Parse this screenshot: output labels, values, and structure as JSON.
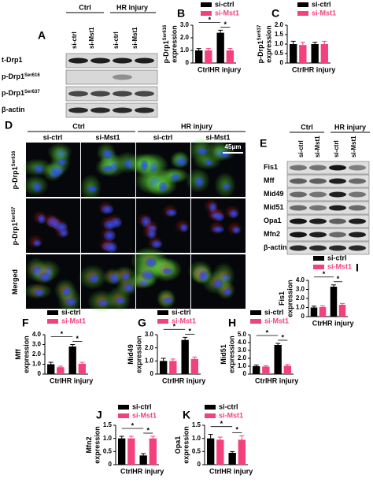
{
  "blot_a": {
    "label": "A",
    "groups": [
      "Ctrl",
      "HR injury"
    ],
    "lanes": [
      "si-ctrl",
      "si-Mst1",
      "si-ctrl",
      "si-Mst1"
    ],
    "rows": [
      {
        "name": "t-Drp1"
      },
      {
        "name": "p-Drp1",
        "sup": "Ser616"
      },
      {
        "name": "p-Drp1",
        "sup": "Ser637"
      },
      {
        "name": "β-actin"
      }
    ]
  },
  "images_d": {
    "label": "D",
    "groups": [
      "Ctrl",
      "HR injury"
    ],
    "lanes": [
      "si-ctrl",
      "si-Mst1",
      "si-ctrl",
      "si-Mst1"
    ],
    "rows": [
      {
        "name": "p-Drp1",
        "sup": "Ser616"
      },
      {
        "name": "p-Drp1",
        "sup": "Ser637"
      },
      {
        "name": "Merged"
      }
    ],
    "scale_bar": "45μm"
  },
  "blot_e": {
    "label": "E",
    "groups": [
      "Ctrl",
      "HR injury"
    ],
    "lanes": [
      "si-ctrl",
      "si-Mst1",
      "si-ctrl",
      "si-Mst1"
    ],
    "rows": [
      {
        "name": "Fis1"
      },
      {
        "name": "Mff"
      },
      {
        "name": "Mid49"
      },
      {
        "name": "Mid51"
      },
      {
        "name": "Opa1"
      },
      {
        "name": "Mfn2"
      },
      {
        "name": "β-actin"
      }
    ]
  },
  "chart_data": [
    {
      "type": "bar",
      "panel": "B",
      "ylabel": "p-Drp1",
      "ylabel_sup": "Ser616",
      "ylabel_line2": "expression",
      "categories": [
        "Ctrl",
        "HR injury"
      ],
      "series": [
        {
          "name": "si-ctrl",
          "color": "#000000",
          "values": [
            1.0,
            2.4
          ],
          "errors": [
            0.15,
            0.2
          ]
        },
        {
          "name": "si-Mst1",
          "color": "#f2417e",
          "values": [
            1.0,
            1.0
          ],
          "errors": [
            0.15,
            0.15
          ]
        }
      ],
      "ylim": [
        0,
        3
      ],
      "yticks": [
        0,
        {
          "value": 1,
          "label": "1.0"
        },
        {
          "value": 2,
          "label": "2.0"
        },
        {
          "value": 3,
          "label": "3.0"
        }
      ],
      "annotations": [
        "*",
        "*"
      ]
    },
    {
      "type": "bar",
      "panel": "C",
      "ylabel": "p-Drp1",
      "ylabel_sup": "Ser637",
      "ylabel_line2": "expression",
      "categories": [
        "Ctrl",
        "HR injury"
      ],
      "series": [
        {
          "name": "si-ctrl",
          "color": "#000000",
          "values": [
            1.0,
            1.0
          ],
          "errors": [
            0.15,
            0.1
          ]
        },
        {
          "name": "si-Mst1",
          "color": "#f2417e",
          "values": [
            0.95,
            1.0
          ],
          "errors": [
            0.15,
            0.15
          ]
        }
      ],
      "ylim": [
        0,
        2
      ],
      "yticks": [
        0,
        0.5,
        {
          "value": 1,
          "label": "1.0"
        },
        1.5,
        {
          "value": 2,
          "label": "2.0"
        }
      ],
      "annotations": []
    },
    {
      "type": "bar",
      "panel": "F",
      "ylabel": "Mff",
      "ylabel_line2": "expression",
      "categories": [
        "Ctrl",
        "HR injury"
      ],
      "series": [
        {
          "name": "si-ctrl",
          "color": "#000000",
          "values": [
            1.0,
            2.8
          ],
          "errors": [
            0.2,
            0.2
          ]
        },
        {
          "name": "si-Mst1",
          "color": "#f2417e",
          "values": [
            0.7,
            1.05
          ],
          "errors": [
            0.1,
            0.15
          ]
        }
      ],
      "ylim": [
        0,
        4
      ],
      "yticks": [
        0,
        {
          "value": 1,
          "label": "1.0"
        },
        {
          "value": 2,
          "label": "2.0"
        },
        {
          "value": 3,
          "label": "3.0"
        },
        {
          "value": 4,
          "label": "4.0"
        }
      ],
      "annotations": [
        "*",
        "*"
      ]
    },
    {
      "type": "bar",
      "panel": "G",
      "ylabel": "Mid49",
      "ylabel_line2": "expression",
      "categories": [
        "Ctrl",
        "HR injury"
      ],
      "series": [
        {
          "name": "si-ctrl",
          "color": "#000000",
          "values": [
            1.0,
            2.6
          ],
          "errors": [
            0.2,
            0.2
          ]
        },
        {
          "name": "si-Mst1",
          "color": "#f2417e",
          "values": [
            1.0,
            1.15
          ],
          "errors": [
            0.15,
            0.15
          ]
        }
      ],
      "ylim": [
        0,
        3
      ],
      "yticks": [
        0,
        {
          "value": 1,
          "label": "1.0"
        },
        {
          "value": 2,
          "label": "2.0"
        },
        {
          "value": 3,
          "label": "3.0"
        }
      ],
      "annotations": [
        "*",
        "*"
      ]
    },
    {
      "type": "bar",
      "panel": "H",
      "ylabel": "Mid51",
      "ylabel_line2": "expression",
      "categories": [
        "Ctrl",
        "HR injury"
      ],
      "series": [
        {
          "name": "si-ctrl",
          "color": "#000000",
          "values": [
            1.0,
            3.7
          ],
          "errors": [
            0.15,
            0.2
          ]
        },
        {
          "name": "si-Mst1",
          "color": "#f2417e",
          "values": [
            0.95,
            1.05
          ],
          "errors": [
            0.1,
            0.15
          ]
        }
      ],
      "ylim": [
        0,
        5
      ],
      "yticks": [
        0,
        {
          "value": 1,
          "label": "1.0"
        },
        {
          "value": 2,
          "label": "2.0"
        },
        {
          "value": 3,
          "label": "3.0"
        },
        {
          "value": 4,
          "label": "4.0"
        },
        {
          "value": 5,
          "label": "5.0"
        }
      ],
      "annotations": [
        "*",
        "*"
      ]
    },
    {
      "type": "bar",
      "panel": "I",
      "ylabel": "Fis1",
      "ylabel_line2": "expression",
      "categories": [
        "Ctrl",
        "HR injury"
      ],
      "series": [
        {
          "name": "si-ctrl",
          "color": "#000000",
          "values": [
            1.0,
            3.3
          ],
          "errors": [
            0.15,
            0.2
          ]
        },
        {
          "name": "si-Mst1",
          "color": "#f2417e",
          "values": [
            1.05,
            1.3
          ],
          "errors": [
            0.15,
            0.15
          ]
        }
      ],
      "ylim": [
        0,
        4
      ],
      "yticks": [
        0,
        {
          "value": 1,
          "label": "1.0"
        },
        {
          "value": 2,
          "label": "2.0"
        },
        {
          "value": 3,
          "label": "3.0"
        },
        {
          "value": 4,
          "label": "4.0"
        }
      ],
      "annotations": [
        "*",
        "*"
      ]
    },
    {
      "type": "bar",
      "panel": "J",
      "ylabel": "Mfn2",
      "ylabel_line2": "expression",
      "categories": [
        "Ctrl",
        "HR injury"
      ],
      "series": [
        {
          "name": "si-ctrl",
          "color": "#000000",
          "values": [
            1.0,
            0.35
          ],
          "errors": [
            0.08,
            0.07
          ]
        },
        {
          "name": "si-Mst1",
          "color": "#f2417e",
          "values": [
            1.0,
            1.0
          ],
          "errors": [
            0.08,
            0.08
          ]
        }
      ],
      "ylim": [
        0,
        1.5
      ],
      "yticks": [
        0,
        0.5,
        {
          "value": 1,
          "label": "1.0"
        },
        1.5
      ],
      "annotations": [
        "*",
        "*"
      ]
    },
    {
      "type": "bar",
      "panel": "K",
      "ylabel": "Opa1",
      "ylabel_line2": "expression",
      "categories": [
        "Ctrl",
        "HR injury"
      ],
      "series": [
        {
          "name": "si-ctrl",
          "color": "#000000",
          "values": [
            1.0,
            0.45
          ],
          "errors": [
            0.15,
            0.05
          ]
        },
        {
          "name": "si-Mst1",
          "color": "#f2417e",
          "values": [
            0.95,
            0.95
          ],
          "errors": [
            0.1,
            0.15
          ]
        }
      ],
      "ylim": [
        0,
        1.5
      ],
      "yticks": [
        0,
        0.5,
        {
          "value": 1,
          "label": "1.0"
        },
        1.5
      ],
      "annotations": [
        "*",
        "*"
      ]
    }
  ]
}
